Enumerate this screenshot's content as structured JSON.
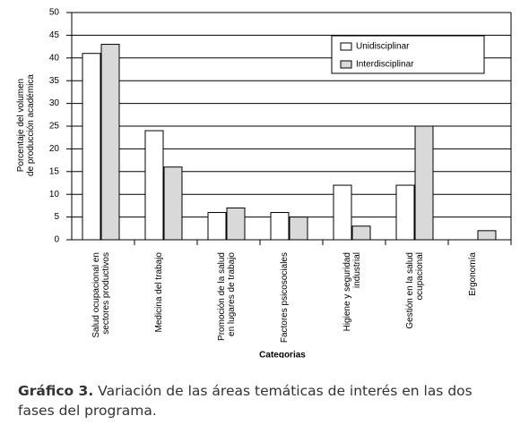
{
  "chart_data": {
    "type": "bar",
    "categories": [
      "Salud ocupacional en\nsectores productivos",
      "Medicina del trabajo",
      "Promoción de la salud\nen lugares de trabajo",
      "Factores psicosociales",
      "Higiene y seguridad\nindustrial",
      "Gestión en la salud\nocupacional",
      "Ergonomía"
    ],
    "series": [
      {
        "name": "Unidisciplinar",
        "color": "#ffffff",
        "values": [
          41,
          24,
          6,
          6,
          12,
          12,
          0
        ]
      },
      {
        "name": "Interdisciplinar",
        "color": "#d9d9d9",
        "values": [
          43,
          16,
          7,
          5,
          3,
          25,
          2
        ]
      }
    ],
    "ylim": [
      0,
      50
    ],
    "yticks": [
      0,
      5,
      10,
      15,
      20,
      25,
      30,
      35,
      40,
      45,
      50
    ],
    "grid": true,
    "y_label": "Porcentaje del volumen\nde producción académica",
    "x_label": "Categorias",
    "legend": "top-right"
  },
  "caption": {
    "label": "Gráfico 3.",
    "text": "Variación de las áreas temáticas de interés en las dos fases del programa."
  }
}
